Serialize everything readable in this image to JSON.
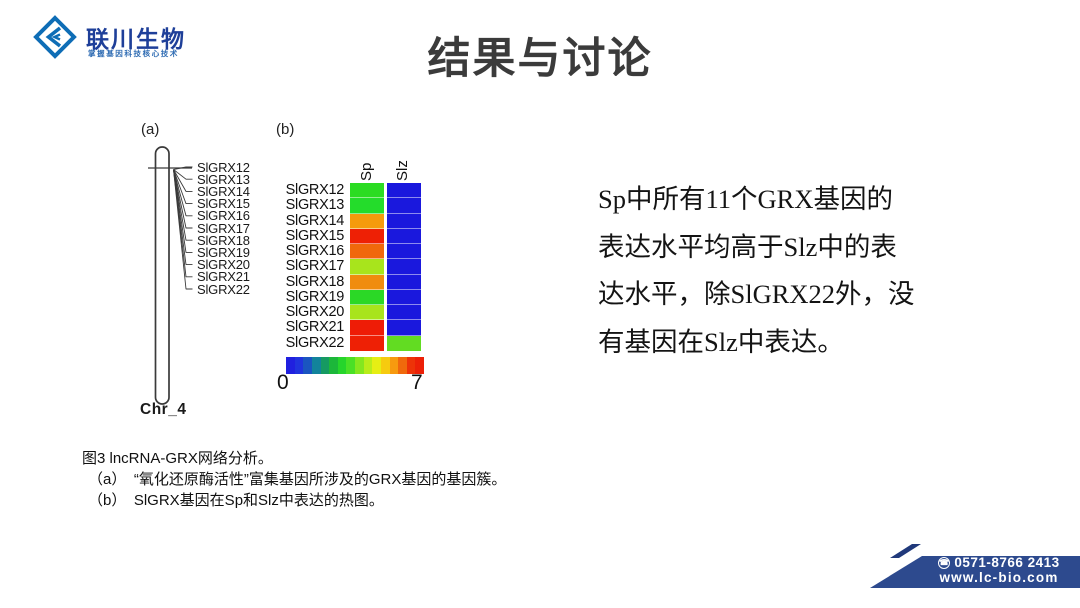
{
  "logo": {
    "name": "联川生物",
    "tagline": "掌握基因科技核心技术",
    "icon_color": "#0e6db6"
  },
  "title": "结果与讨论",
  "figure": {
    "panel_a": {
      "label": "(a)",
      "chromosome_name": "Chr_4",
      "genes": [
        "SlGRX12",
        "SlGRX13",
        "SlGRX14",
        "SlGRX15",
        "SlGRX16",
        "SlGRX17",
        "SlGRX18",
        "SlGRX19",
        "SlGRX20",
        "SlGRX21",
        "SlGRX22"
      ]
    },
    "panel_b": {
      "label": "(b)",
      "columns": [
        "Sp",
        "Slz"
      ],
      "rows": [
        {
          "gene": "SlGRX12",
          "sp": "#2bdc22",
          "slz": "#1a18dd"
        },
        {
          "gene": "SlGRX13",
          "sp": "#24dc2b",
          "slz": "#1a18dd"
        },
        {
          "gene": "SlGRX14",
          "sp": "#f59b0c",
          "slz": "#1a18dd"
        },
        {
          "gene": "SlGRX15",
          "sp": "#ee2005",
          "slz": "#1a18dd"
        },
        {
          "gene": "SlGRX16",
          "sp": "#f0680c",
          "slz": "#1a18dd"
        },
        {
          "gene": "SlGRX17",
          "sp": "#a8e41c",
          "slz": "#1a18dd"
        },
        {
          "gene": "SlGRX18",
          "sp": "#f08c0e",
          "slz": "#1a18dd"
        },
        {
          "gene": "SlGRX19",
          "sp": "#2bd826",
          "slz": "#1a18dd"
        },
        {
          "gene": "SlGRX20",
          "sp": "#a8e41c",
          "slz": "#1a18dd"
        },
        {
          "gene": "SlGRX21",
          "sp": "#ee1c06",
          "slz": "#1a18dd"
        },
        {
          "gene": "SlGRX22",
          "sp": "#ee2005",
          "slz": "#62dc22"
        }
      ],
      "colorbar": {
        "min": "0",
        "max": "7",
        "colors": [
          "#2020df",
          "#2033dd",
          "#1a55c0",
          "#12839b",
          "#169a62",
          "#1cb73a",
          "#26d52b",
          "#4ae026",
          "#84e71f",
          "#b9ec1a",
          "#e6ee14",
          "#f6cb0f",
          "#f79a0f",
          "#f0690c",
          "#ed3308",
          "#ec2007"
        ]
      }
    }
  },
  "chart_data": {
    "type": "heatmap",
    "title": "SlGRX gene expression in Sp and Slz",
    "rows": [
      "SlGRX12",
      "SlGRX13",
      "SlGRX14",
      "SlGRX15",
      "SlGRX16",
      "SlGRX17",
      "SlGRX18",
      "SlGRX19",
      "SlGRX20",
      "SlGRX21",
      "SlGRX22"
    ],
    "columns": [
      "Sp",
      "Slz"
    ],
    "scale_range": [
      0,
      7
    ],
    "series": [
      {
        "name": "Sp",
        "values": [
          3.5,
          3.5,
          5.5,
          7,
          5.8,
          4.2,
          5.5,
          3.5,
          4.2,
          7,
          7
        ]
      },
      {
        "name": "Slz",
        "values": [
          0,
          0,
          0,
          0,
          0,
          0,
          0,
          0,
          0,
          0,
          3.8
        ]
      }
    ],
    "legend_position": "bottom",
    "colormap": "blue-green-yellow-red (rainbow)"
  },
  "body_text": "Sp中所有11个GRX基因的\n表达水平均高于Slz中的表\n达水平，除SlGRX22外，没\n有基因在Slz中表达。",
  "caption": {
    "lines": [
      "图3  lncRNA-GRX网络分析。",
      "（a）　“氧化还原酶活性”富集基因所涉及的GRX基因的基因簇。",
      "（b）　SlGRX基因在Sp和Slz中表达的热图。"
    ]
  },
  "footer": {
    "phone": "0571-8766 2413",
    "website": "www.lc-bio.com",
    "band_color": "#2d4a8e",
    "sliver_color": "#20397b"
  }
}
